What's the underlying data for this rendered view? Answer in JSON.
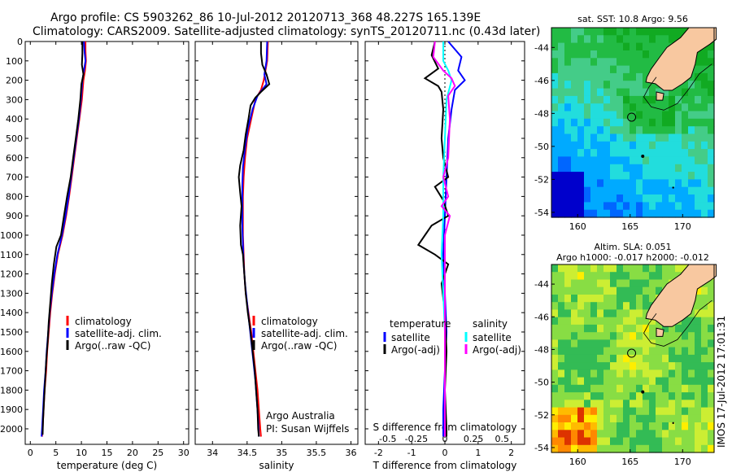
{
  "header": {
    "line1": "Argo profile: CS 5903262_86 10-Jul-2012 20120713_368 48.227S 165.139E",
    "line2": "Climatology: CARS2009. Satellite-adjusted climatology: synTS_20120711.nc (0.43d later)"
  },
  "colors": {
    "climatology": "#ff0000",
    "satellite": "#0000ff",
    "argo": "#000000",
    "sat_diff": "#00ffff",
    "argo_diff": "#ff00ff",
    "land": "#f8c8a0"
  },
  "chart_data": [
    {
      "type": "line",
      "panel": "temperature",
      "xlabel": "temperature (deg C)",
      "xlim": [
        -1,
        31
      ],
      "xticks": [
        0,
        5,
        10,
        15,
        20,
        25,
        30
      ],
      "ylim": [
        0,
        2080
      ],
      "yticks": [
        0,
        100,
        200,
        300,
        400,
        500,
        600,
        700,
        800,
        900,
        1000,
        1100,
        1200,
        1300,
        1400,
        1500,
        1600,
        1700,
        1800,
        1900,
        2000
      ],
      "legend": [
        "climatology",
        "satellite-adj. clim.",
        "Argo(..raw -QC)"
      ],
      "series": [
        {
          "name": "climatology",
          "color": "#ff0000",
          "points": [
            [
              10.8,
              0
            ],
            [
              10.8,
              50
            ],
            [
              10.9,
              100
            ],
            [
              10.7,
              150
            ],
            [
              10.4,
              200
            ],
            [
              10.1,
              300
            ],
            [
              9.6,
              400
            ],
            [
              9.1,
              500
            ],
            [
              8.6,
              600
            ],
            [
              8.1,
              700
            ],
            [
              7.6,
              800
            ],
            [
              7.0,
              900
            ],
            [
              6.3,
              1000
            ],
            [
              5.4,
              1100
            ],
            [
              4.8,
              1200
            ],
            [
              4.3,
              1300
            ],
            [
              3.9,
              1400
            ],
            [
              3.6,
              1500
            ],
            [
              3.3,
              1600
            ],
            [
              3.1,
              1700
            ],
            [
              2.8,
              1800
            ],
            [
              2.6,
              1900
            ],
            [
              2.4,
              2000
            ],
            [
              2.3,
              2040
            ]
          ]
        },
        {
          "name": "satellite-adj. clim.",
          "color": "#0000ff",
          "points": [
            [
              10.5,
              0
            ],
            [
              10.6,
              50
            ],
            [
              10.8,
              100
            ],
            [
              10.5,
              150
            ],
            [
              10.2,
              200
            ],
            [
              9.9,
              300
            ],
            [
              9.5,
              400
            ],
            [
              9.0,
              500
            ],
            [
              8.5,
              600
            ],
            [
              8.0,
              700
            ],
            [
              7.5,
              800
            ],
            [
              6.9,
              900
            ],
            [
              6.2,
              1000
            ],
            [
              5.3,
              1100
            ],
            [
              4.7,
              1200
            ],
            [
              4.2,
              1300
            ],
            [
              3.8,
              1400
            ],
            [
              3.5,
              1500
            ],
            [
              3.2,
              1600
            ],
            [
              3.0,
              1700
            ],
            [
              2.7,
              1800
            ],
            [
              2.5,
              1900
            ],
            [
              2.3,
              2000
            ],
            [
              2.2,
              2040
            ]
          ]
        },
        {
          "name": "Argo(..raw -QC)",
          "color": "#000000",
          "points": [
            [
              10.2,
              0
            ],
            [
              10.2,
              60
            ],
            [
              10.1,
              120
            ],
            [
              10.4,
              170
            ],
            [
              10.0,
              220
            ],
            [
              9.8,
              300
            ],
            [
              9.4,
              400
            ],
            [
              8.9,
              500
            ],
            [
              8.4,
              600
            ],
            [
              7.9,
              700
            ],
            [
              7.2,
              800
            ],
            [
              6.6,
              900
            ],
            [
              6.0,
              1000
            ],
            [
              5.1,
              1060
            ],
            [
              4.6,
              1150
            ],
            [
              4.2,
              1250
            ],
            [
              3.9,
              1350
            ],
            [
              3.6,
              1450
            ],
            [
              3.4,
              1550
            ],
            [
              3.1,
              1650
            ],
            [
              2.9,
              1750
            ],
            [
              2.7,
              1850
            ],
            [
              2.5,
              1950
            ],
            [
              2.4,
              2030
            ]
          ]
        }
      ]
    },
    {
      "type": "line",
      "panel": "salinity",
      "xlabel": "salinity",
      "xlim": [
        33.75,
        36.1
      ],
      "xticks": [
        34,
        34.5,
        35,
        35.5,
        36
      ],
      "ylim": [
        0,
        2080
      ],
      "legend": [
        "climatology",
        "satellite-adj. clim.",
        "Argo(..raw -QC)"
      ],
      "annotation": [
        "Argo Australia",
        "PI: Susan Wijffels"
      ],
      "series": [
        {
          "name": "climatology",
          "color": "#ff0000",
          "points": [
            [
              34.8,
              0
            ],
            [
              34.79,
              100
            ],
            [
              34.74,
              200
            ],
            [
              34.7,
              250
            ],
            [
              34.62,
              300
            ],
            [
              34.56,
              400
            ],
            [
              34.5,
              500
            ],
            [
              34.47,
              600
            ],
            [
              34.45,
              700
            ],
            [
              34.44,
              800
            ],
            [
              34.44,
              900
            ],
            [
              34.44,
              1000
            ],
            [
              34.45,
              1100
            ],
            [
              34.46,
              1200
            ],
            [
              34.48,
              1300
            ],
            [
              34.52,
              1400
            ],
            [
              34.56,
              1500
            ],
            [
              34.59,
              1600
            ],
            [
              34.62,
              1700
            ],
            [
              34.65,
              1800
            ],
            [
              34.67,
              1900
            ],
            [
              34.69,
              2000
            ],
            [
              34.7,
              2040
            ]
          ]
        },
        {
          "name": "satellite-adj. clim.",
          "color": "#0000ff",
          "points": [
            [
              34.79,
              0
            ],
            [
              34.78,
              100
            ],
            [
              34.75,
              170
            ],
            [
              34.78,
              220
            ],
            [
              34.65,
              280
            ],
            [
              34.58,
              350
            ],
            [
              34.51,
              450
            ],
            [
              34.47,
              550
            ],
            [
              34.44,
              650
            ],
            [
              34.43,
              750
            ],
            [
              34.43,
              850
            ],
            [
              34.43,
              950
            ],
            [
              34.44,
              1050
            ],
            [
              34.45,
              1150
            ],
            [
              34.47,
              1250
            ],
            [
              34.5,
              1350
            ],
            [
              34.53,
              1450
            ],
            [
              34.56,
              1550
            ],
            [
              34.59,
              1650
            ],
            [
              34.62,
              1750
            ],
            [
              34.64,
              1850
            ],
            [
              34.66,
              1950
            ],
            [
              34.67,
              2040
            ]
          ]
        },
        {
          "name": "Argo(..raw -QC)",
          "color": "#000000",
          "points": [
            [
              34.7,
              0
            ],
            [
              34.7,
              60
            ],
            [
              34.72,
              120
            ],
            [
              34.78,
              170
            ],
            [
              34.82,
              220
            ],
            [
              34.7,
              260
            ],
            [
              34.62,
              290
            ],
            [
              34.55,
              330
            ],
            [
              34.52,
              400
            ],
            [
              34.48,
              480
            ],
            [
              34.45,
              560
            ],
            [
              34.4,
              640
            ],
            [
              34.38,
              700
            ],
            [
              34.4,
              780
            ],
            [
              34.42,
              850
            ],
            [
              34.4,
              950
            ],
            [
              34.41,
              1050
            ],
            [
              34.44,
              1100
            ],
            [
              34.46,
              1200
            ],
            [
              34.48,
              1300
            ],
            [
              34.51,
              1400
            ],
            [
              34.55,
              1500
            ],
            [
              34.58,
              1600
            ],
            [
              34.61,
              1700
            ],
            [
              34.63,
              1800
            ],
            [
              34.65,
              1900
            ],
            [
              34.66,
              2000
            ],
            [
              34.67,
              2040
            ]
          ]
        }
      ]
    },
    {
      "type": "line",
      "panel": "differences",
      "xlabel": "T difference from climatology",
      "xlim": [
        -2.4,
        2.4
      ],
      "xticks": [
        -2,
        -1,
        0,
        1,
        2
      ],
      "top_label": "S difference from climatology",
      "top_ticks": [
        {
          "label": "-0.5",
          "t": -1.72
        },
        {
          "label": "-0.25",
          "t": -0.86
        },
        {
          "label": "0",
          "t": 0
        },
        {
          "label": "0.25",
          "t": 0.86
        },
        {
          "label": "0.5",
          "t": 1.72
        }
      ],
      "ylim": [
        0,
        2080
      ],
      "legend": {
        "temperature_heading": "temperature",
        "salinity_heading": "salinity",
        "entries": [
          "satellite",
          "Argo(-adj)",
          "satellite",
          "Argo(-adj)"
        ]
      },
      "series": [
        {
          "name": "temperature satellite",
          "color": "#0000ff",
          "points": [
            [
              0.1,
              0
            ],
            [
              0.5,
              80
            ],
            [
              0.4,
              150
            ],
            [
              0.6,
              200
            ],
            [
              0.3,
              250
            ],
            [
              0.2,
              350
            ],
            [
              0.1,
              500
            ],
            [
              0.05,
              700
            ],
            [
              0.0,
              900
            ],
            [
              -0.05,
              1100
            ],
            [
              0.0,
              1300
            ],
            [
              0.05,
              1500
            ],
            [
              0.0,
              1700
            ],
            [
              -0.05,
              1900
            ],
            [
              -0.05,
              2040
            ]
          ]
        },
        {
          "name": "temperature Argo(-adj)",
          "color": "#000000",
          "points": [
            [
              -0.3,
              0
            ],
            [
              -0.4,
              70
            ],
            [
              -0.2,
              140
            ],
            [
              -0.6,
              190
            ],
            [
              -0.2,
              230
            ],
            [
              -0.1,
              260
            ],
            [
              -0.05,
              350
            ],
            [
              -0.1,
              500
            ],
            [
              -0.05,
              600
            ],
            [
              0.1,
              700
            ],
            [
              -0.3,
              750
            ],
            [
              -0.05,
              820
            ],
            [
              0.1,
              900
            ],
            [
              -0.4,
              950
            ],
            [
              -0.6,
              1000
            ],
            [
              -0.8,
              1050
            ],
            [
              -0.3,
              1100
            ],
            [
              0.1,
              1150
            ],
            [
              -0.1,
              1250
            ],
            [
              0.0,
              1400
            ],
            [
              0.05,
              1600
            ],
            [
              0.0,
              1800
            ],
            [
              0.05,
              2000
            ],
            [
              0.05,
              2040
            ]
          ]
        },
        {
          "name": "salinity satellite",
          "color": "#00ffff",
          "points": [
            [
              -0.05,
              0
            ],
            [
              -0.05,
              100
            ],
            [
              0.1,
              150
            ],
            [
              0.2,
              200
            ],
            [
              0.05,
              300
            ],
            [
              0.0,
              500
            ],
            [
              -0.05,
              700
            ],
            [
              -0.05,
              900
            ],
            [
              -0.1,
              1100
            ],
            [
              -0.05,
              1300
            ],
            [
              0.0,
              1500
            ],
            [
              0.0,
              1700
            ],
            [
              0.0,
              1900
            ],
            [
              0.0,
              2040
            ]
          ]
        },
        {
          "name": "salinity Argo(-adj)",
          "color": "#ff00ff",
          "points": [
            [
              -0.3,
              0
            ],
            [
              -0.35,
              80
            ],
            [
              -0.05,
              150
            ],
            [
              0.2,
              190
            ],
            [
              0.3,
              230
            ],
            [
              0.1,
              280
            ],
            [
              0.15,
              400
            ],
            [
              0.1,
              600
            ],
            [
              -0.05,
              700
            ],
            [
              0.1,
              800
            ],
            [
              -0.1,
              850
            ],
            [
              0.15,
              900
            ],
            [
              0.0,
              1000
            ],
            [
              0.0,
              1100
            ],
            [
              0.0,
              1300
            ],
            [
              0.0,
              1500
            ],
            [
              0.0,
              1700
            ],
            [
              0.0,
              1900
            ],
            [
              0.0,
              2040
            ]
          ]
        }
      ]
    },
    {
      "type": "heatmap",
      "panel": "sst-map",
      "title": "sat. SST: 10.8 Argo: 9.56",
      "xlim": [
        157.5,
        173
      ],
      "ylim": [
        -54.3,
        -42.8
      ],
      "xticks": [
        160,
        165,
        170
      ],
      "yticks": [
        -44,
        -46,
        -48,
        -50,
        -52,
        -54
      ],
      "marker": {
        "lon": 165.139,
        "lat": -48.227
      }
    },
    {
      "type": "heatmap",
      "panel": "sla-map",
      "title": "Altim. SLA: 0.051",
      "subtitle": "Argo h1000: -0.017 h2000: -0.012",
      "xlim": [
        157.5,
        173
      ],
      "ylim": [
        -54.3,
        -42.8
      ],
      "xticks": [
        160,
        165,
        170
      ],
      "yticks": [
        -44,
        -46,
        -48,
        -50,
        -52,
        -54
      ],
      "marker": {
        "lon": 165.139,
        "lat": -48.227
      }
    }
  ],
  "side_stamp": "IMOS 17-Jul-2012 17:01:31"
}
